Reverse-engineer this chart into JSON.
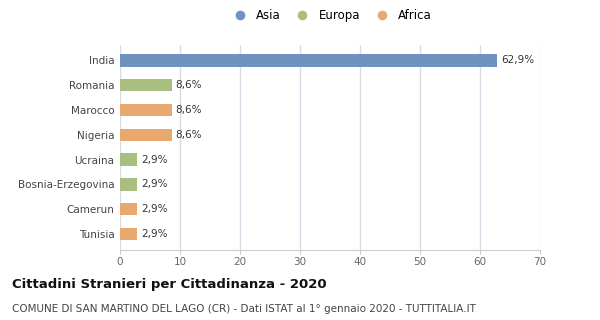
{
  "categories": [
    "India",
    "Romania",
    "Marocco",
    "Nigeria",
    "Ucraina",
    "Bosnia-Erzegovina",
    "Camerun",
    "Tunisia"
  ],
  "values": [
    62.9,
    8.6,
    8.6,
    8.6,
    2.9,
    2.9,
    2.9,
    2.9
  ],
  "labels": [
    "62,9%",
    "8,6%",
    "8,6%",
    "8,6%",
    "2,9%",
    "2,9%",
    "2,9%",
    "2,9%"
  ],
  "colors": [
    "#7092be",
    "#a8bf7f",
    "#e8a870",
    "#e8a870",
    "#a8bf7f",
    "#a8bf7f",
    "#e8a870",
    "#e8a870"
  ],
  "legend": [
    {
      "label": "Asia",
      "color": "#7092be"
    },
    {
      "label": "Europa",
      "color": "#a8bf7f"
    },
    {
      "label": "Africa",
      "color": "#e8a870"
    }
  ],
  "xlim": [
    0,
    70
  ],
  "xticks": [
    0,
    10,
    20,
    30,
    40,
    50,
    60,
    70
  ],
  "title": "Cittadini Stranieri per Cittadinanza - 2020",
  "subtitle": "COMUNE DI SAN MARTINO DEL LAGO (CR) - Dati ISTAT al 1° gennaio 2020 - TUTTITALIA.IT",
  "background_color": "#ffffff",
  "grid_color": "#d8dce8",
  "bar_height": 0.5,
  "title_fontsize": 9.5,
  "subtitle_fontsize": 7.5,
  "label_fontsize": 7.5,
  "tick_fontsize": 7.5,
  "legend_fontsize": 8.5
}
